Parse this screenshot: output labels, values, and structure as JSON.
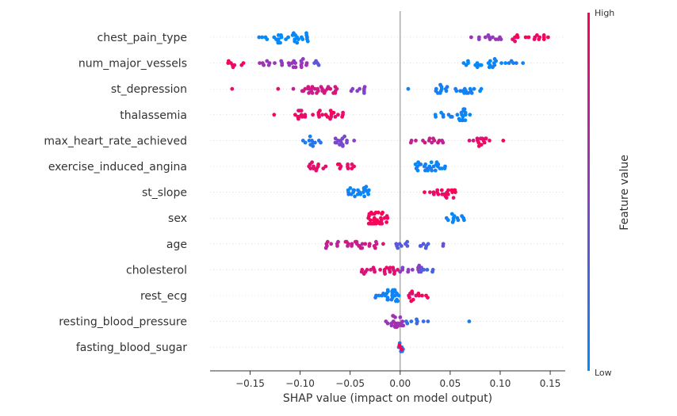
{
  "chart_data": {
    "type": "scatter",
    "subtype": "shap-beeswarm",
    "xlabel": "SHAP value (impact on model output)",
    "xticks": [
      -0.15,
      -0.1,
      -0.05,
      0.0,
      0.05,
      0.1,
      0.15
    ],
    "xtick_labels": [
      "−0.15",
      "−0.10",
      "−0.05",
      "0.00",
      "0.05",
      "0.10",
      "0.15"
    ],
    "xlim": [
      -0.19,
      0.165
    ],
    "colorbar": {
      "title": "Feature value",
      "high_label": "High",
      "low_label": "Low",
      "high_color": "#ff0052",
      "low_color": "#008bfb"
    },
    "grid": false,
    "features": [
      {
        "name": "chest_pain_type",
        "clusters": [
          {
            "center": -0.115,
            "spread": 0.026,
            "color": 0.0,
            "n": 30
          },
          {
            "center": 0.085,
            "spread": 0.018,
            "color": 0.55,
            "n": 12
          },
          {
            "center": 0.13,
            "spread": 0.018,
            "color": 0.95,
            "n": 16
          }
        ]
      },
      {
        "name": "num_major_vessels",
        "clusters": [
          {
            "center": -0.16,
            "spread": 0.012,
            "color": 0.9,
            "n": 8
          },
          {
            "center": -0.118,
            "spread": 0.025,
            "color": 0.55,
            "n": 24
          },
          {
            "center": -0.085,
            "spread": 0.007,
            "color": 0.35,
            "n": 4
          },
          {
            "center": 0.072,
            "spread": 0.01,
            "color": 0.0,
            "n": 10
          },
          {
            "center": 0.105,
            "spread": 0.018,
            "color": 0.05,
            "n": 16
          }
        ]
      },
      {
        "name": "st_depression",
        "clusters": [
          {
            "center": -0.168,
            "spread": 0.002,
            "color": 0.95,
            "n": 1
          },
          {
            "center": -0.122,
            "spread": 0.002,
            "color": 0.95,
            "n": 1
          },
          {
            "center": -0.085,
            "spread": 0.022,
            "color": 0.78,
            "n": 28
          },
          {
            "center": -0.045,
            "spread": 0.012,
            "color": 0.5,
            "n": 8
          },
          {
            "center": 0.008,
            "spread": 0.002,
            "color": 0.1,
            "n": 1
          },
          {
            "center": 0.06,
            "spread": 0.025,
            "color": 0.05,
            "n": 26
          }
        ]
      },
      {
        "name": "thalassemia",
        "clusters": [
          {
            "center": -0.126,
            "spread": 0.002,
            "color": 0.95,
            "n": 1
          },
          {
            "center": -0.08,
            "spread": 0.025,
            "color": 0.92,
            "n": 30
          },
          {
            "center": 0.052,
            "spread": 0.018,
            "color": 0.05,
            "n": 24
          }
        ]
      },
      {
        "name": "max_heart_rate_achieved",
        "clusters": [
          {
            "center": -0.09,
            "spread": 0.012,
            "color": 0.12,
            "n": 12
          },
          {
            "center": -0.055,
            "spread": 0.012,
            "color": 0.45,
            "n": 14
          },
          {
            "center": 0.025,
            "spread": 0.018,
            "color": 0.75,
            "n": 14
          },
          {
            "center": 0.075,
            "spread": 0.015,
            "color": 0.9,
            "n": 14
          },
          {
            "center": 0.103,
            "spread": 0.002,
            "color": 0.95,
            "n": 1
          }
        ]
      },
      {
        "name": "exercise_induced_angina",
        "clusters": [
          {
            "center": -0.085,
            "spread": 0.012,
            "color": 0.9,
            "n": 12
          },
          {
            "center": -0.055,
            "spread": 0.01,
            "color": 0.92,
            "n": 10
          },
          {
            "center": 0.03,
            "spread": 0.015,
            "color": 0.05,
            "n": 26
          }
        ]
      },
      {
        "name": "st_slope",
        "clusters": [
          {
            "center": -0.04,
            "spread": 0.012,
            "color": 0.05,
            "n": 22
          },
          {
            "center": 0.04,
            "spread": 0.016,
            "color": 0.92,
            "n": 22
          }
        ]
      },
      {
        "name": "sex",
        "clusters": [
          {
            "center": -0.022,
            "spread": 0.01,
            "color": 0.97,
            "n": 34
          },
          {
            "center": 0.052,
            "spread": 0.018,
            "color": 0.05,
            "n": 12
          }
        ]
      },
      {
        "name": "age",
        "clusters": [
          {
            "center": -0.045,
            "spread": 0.03,
            "color": 0.75,
            "n": 30
          },
          {
            "center": 0.02,
            "spread": 0.025,
            "color": 0.3,
            "n": 16
          }
        ]
      },
      {
        "name": "cholesterol",
        "clusters": [
          {
            "center": -0.02,
            "spread": 0.02,
            "color": 0.85,
            "n": 22
          },
          {
            "center": 0.012,
            "spread": 0.015,
            "color": 0.5,
            "n": 12
          },
          {
            "center": 0.025,
            "spread": 0.008,
            "color": 0.3,
            "n": 6
          }
        ]
      },
      {
        "name": "rest_ecg",
        "clusters": [
          {
            "center": -0.013,
            "spread": 0.012,
            "color": 0.05,
            "n": 26
          },
          {
            "center": 0.018,
            "spread": 0.01,
            "color": 0.9,
            "n": 14
          }
        ]
      },
      {
        "name": "resting_blood_pressure",
        "clusters": [
          {
            "center": -0.005,
            "spread": 0.01,
            "color": 0.6,
            "n": 22
          },
          {
            "center": 0.018,
            "spread": 0.012,
            "color": 0.2,
            "n": 8
          },
          {
            "center": 0.069,
            "spread": 0.002,
            "color": 0.1,
            "n": 1
          }
        ]
      },
      {
        "name": "fasting_blood_sugar",
        "clusters": [
          {
            "center": 0.0,
            "spread": 0.003,
            "color": 0.1,
            "n": 6
          },
          {
            "center": 0.0,
            "spread": 0.003,
            "color": 0.95,
            "n": 3
          }
        ]
      }
    ]
  }
}
